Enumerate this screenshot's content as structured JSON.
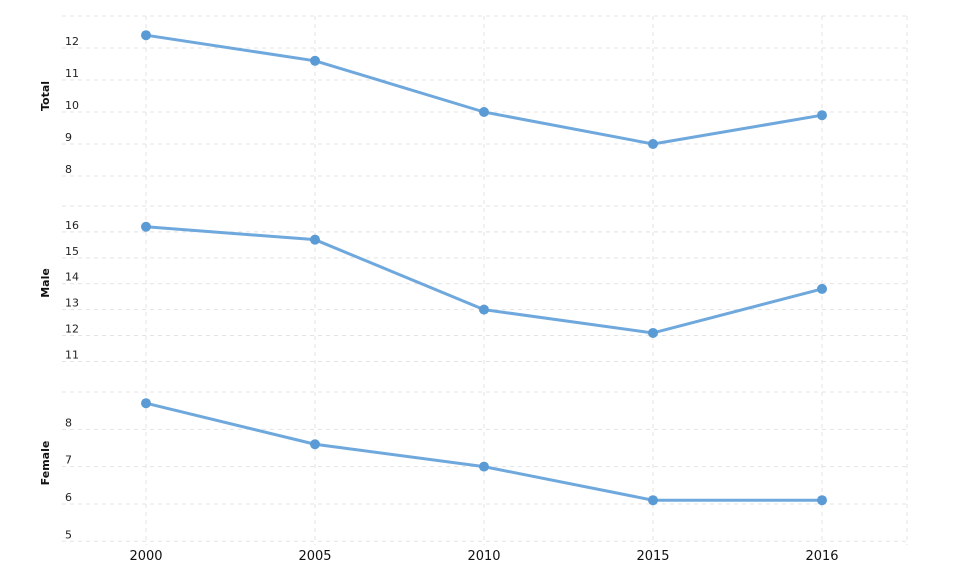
{
  "chart_data": [
    {
      "type": "line",
      "ylabel": "Total",
      "x": [
        "2000",
        "2005",
        "2010",
        "2015",
        "2016"
      ],
      "values": [
        12.4,
        11.6,
        10.0,
        9.0,
        9.9
      ],
      "ylim": [
        7.5,
        13
      ],
      "yticks": [
        8,
        9,
        10,
        11,
        12
      ],
      "grid": true
    },
    {
      "type": "line",
      "ylabel": "Male",
      "x": [
        "2000",
        "2005",
        "2010",
        "2015",
        "2016"
      ],
      "values": [
        16.2,
        15.7,
        13.0,
        12.1,
        13.8
      ],
      "ylim": [
        10.4,
        17
      ],
      "yticks": [
        11,
        12,
        13,
        14,
        15,
        16
      ],
      "grid": true
    },
    {
      "type": "line",
      "ylabel": "Female",
      "x": [
        "2000",
        "2005",
        "2010",
        "2015",
        "2016"
      ],
      "values": [
        8.7,
        7.6,
        7.0,
        6.1,
        6.1
      ],
      "ylim": [
        4.9,
        9.0
      ],
      "yticks": [
        5,
        6,
        7,
        8
      ],
      "grid": true
    }
  ],
  "colors": {
    "line": "#6fa8dc",
    "marker": "#5b9bd5"
  }
}
